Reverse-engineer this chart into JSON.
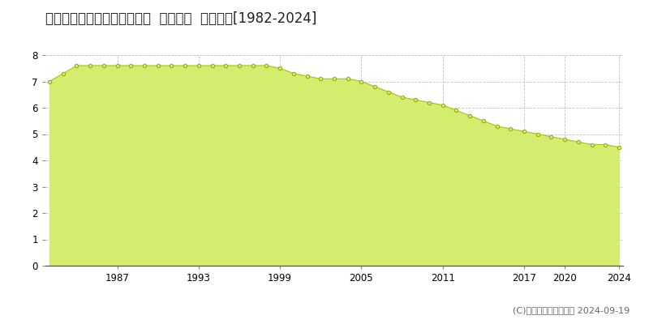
{
  "title": "岩手県遠野市下組町３２番７  公示地価  地価推移[1982-2024]",
  "years": [
    1982,
    1983,
    1984,
    1985,
    1986,
    1987,
    1988,
    1989,
    1990,
    1991,
    1992,
    1993,
    1994,
    1995,
    1996,
    1997,
    1998,
    1999,
    2000,
    2001,
    2002,
    2003,
    2004,
    2005,
    2006,
    2007,
    2008,
    2009,
    2010,
    2011,
    2012,
    2013,
    2014,
    2015,
    2016,
    2017,
    2018,
    2019,
    2020,
    2021,
    2022,
    2023,
    2024
  ],
  "values": [
    7.0,
    7.3,
    7.6,
    7.6,
    7.6,
    7.6,
    7.6,
    7.6,
    7.6,
    7.6,
    7.6,
    7.6,
    7.6,
    7.6,
    7.6,
    7.6,
    7.6,
    7.5,
    7.3,
    7.2,
    7.1,
    7.1,
    7.1,
    7.0,
    6.8,
    6.6,
    6.4,
    6.3,
    6.2,
    6.1,
    5.9,
    5.7,
    5.5,
    5.3,
    5.2,
    5.1,
    5.0,
    4.9,
    4.8,
    4.7,
    4.6,
    4.6,
    4.5
  ],
  "line_color": "#a8c800",
  "fill_color": "#d4ed6e",
  "marker_edge_color": "#8faa00",
  "bg_color": "#ffffff",
  "plot_bg_color": "#ffffff",
  "grid_color": "#bbbbbb",
  "ylim": [
    0,
    8
  ],
  "yticks": [
    0,
    1,
    2,
    3,
    4,
    5,
    6,
    7,
    8
  ],
  "xtick_positions": [
    1987,
    1993,
    1999,
    2005,
    2011,
    2017,
    2020,
    2024
  ],
  "xtick_labels": [
    "1987",
    "1993",
    "1999",
    "2005",
    "2011",
    "2017",
    "2020",
    "2024"
  ],
  "legend_marker_color": "#c8dc44",
  "copyright_text": "(C)土地価格ドットコム 2024-09-19",
  "title_fontsize": 12,
  "tick_fontsize": 8.5,
  "legend_fontsize": 8.5,
  "copyright_fontsize": 8
}
